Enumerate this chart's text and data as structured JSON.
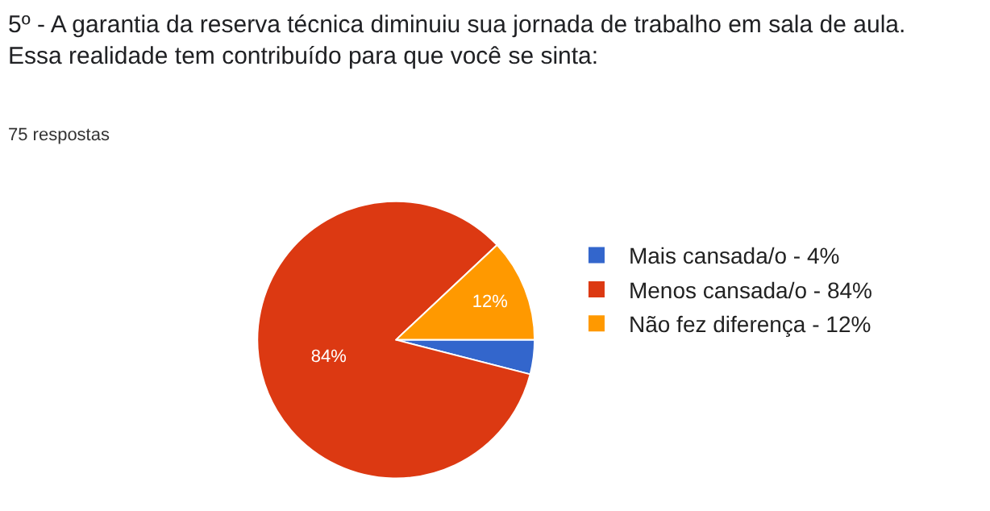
{
  "chart_data": {
    "type": "pie",
    "title": "5º - A garantia da reserva técnica diminuiu sua jornada de trabalho em sala de aula.\nEssa realidade tem contribuído para que você se sinta:",
    "subtitle": "75 respostas",
    "categories": [
      "Mais cansada/o - 4%",
      "Menos cansada/o - 84%",
      "Não fez diferença - 12%"
    ],
    "values": [
      4,
      84,
      12
    ],
    "colors": [
      "#3366cc",
      "#dc3912",
      "#ff9900"
    ],
    "value_labels": [
      null,
      "84%",
      "12%"
    ],
    "legend": "right"
  }
}
